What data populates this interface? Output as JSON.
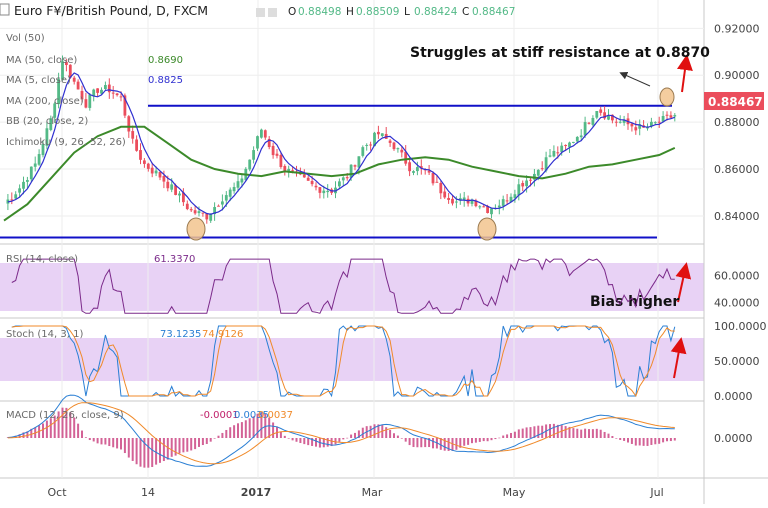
{
  "header": {
    "symbol": "Euro F¥/British Pound, D, FXCM",
    "ohlc": [
      {
        "k": "O",
        "v": "0.88498"
      },
      {
        "k": "H",
        "v": "0.88509"
      },
      {
        "k": "L",
        "v": "0.88424"
      },
      {
        "k": "C",
        "v": "0.88467"
      }
    ]
  },
  "annotations": {
    "resistance": "Struggles at stiff resistance at 0.8870",
    "bias": "Bias higher"
  },
  "price_tag": "0.88467",
  "colors": {
    "bull": "#53b987",
    "bear": "#eb4d5c",
    "ma5": "#3030d0",
    "ma50": "#3c8a2a",
    "level": "#1010c8",
    "rsi": "#7b2a8a",
    "band": "#e8d2f5",
    "stoch_k": "#2a7fd4",
    "stoch_d": "#f08a2a",
    "arrow": "#e01010",
    "circle": "#f2c48e",
    "hist": "#c0206a"
  },
  "main_legend": [
    {
      "name": "Vol (50)",
      "value": "",
      "color": "#6a6a6a"
    },
    {
      "name": "MA (50, close)",
      "value": "0.8690",
      "color": "#3c8a2a"
    },
    {
      "name": "MA (5, close)",
      "value": "0.8825",
      "color": "#3030d0"
    },
    {
      "name": "MA (200, close)",
      "value": "",
      "color": "#6a6a6a"
    },
    {
      "name": "BB (20, close, 2)",
      "value": "",
      "color": "#6a6a6a"
    },
    {
      "name": "Ichimoku (9, 26, 52, 26)",
      "value": "",
      "color": "#6a6a6a"
    }
  ],
  "rsi_legend": {
    "name": "RSI (14, close)",
    "value": "61.3370"
  },
  "stoch_legend": {
    "name": "Stoch (14, 3, 1)",
    "v1": "73.1235",
    "v2": "74.9126"
  },
  "macd_legend": {
    "name": "MACD (12, 26, close, 9)",
    "v1": "-0.0001",
    "v2": "0.0035",
    "v3": "0.0037"
  },
  "chart_data": {
    "type": "candlestick",
    "title": "Euro F¥/British Pound, D, FXCM",
    "x_labels": [
      "Oct",
      "14",
      "2017",
      "Mar",
      "May",
      "Jul"
    ],
    "price_axis": {
      "ticks": [
        "0.92000",
        "0.90000",
        "0.88000",
        "0.86000",
        "0.84000"
      ],
      "range": [
        0.8306,
        0.9244
      ]
    },
    "resistance_level": 0.887,
    "support_level": 0.8308,
    "close_path": [
      [
        0,
        0.845
      ],
      [
        4,
        0.852
      ],
      [
        8,
        0.862
      ],
      [
        12,
        0.881
      ],
      [
        15,
        0.907
      ],
      [
        18,
        0.897
      ],
      [
        21,
        0.888
      ],
      [
        24,
        0.894
      ],
      [
        27,
        0.894
      ],
      [
        30,
        0.89
      ],
      [
        33,
        0.871
      ],
      [
        36,
        0.862
      ],
      [
        40,
        0.857
      ],
      [
        44,
        0.85
      ],
      [
        48,
        0.842
      ],
      [
        52,
        0.84
      ],
      [
        56,
        0.848
      ],
      [
        60,
        0.853
      ],
      [
        63,
        0.864
      ],
      [
        66,
        0.877
      ],
      [
        69,
        0.867
      ],
      [
        72,
        0.86
      ],
      [
        76,
        0.856
      ],
      [
        80,
        0.852
      ],
      [
        84,
        0.851
      ],
      [
        88,
        0.857
      ],
      [
        92,
        0.869
      ],
      [
        96,
        0.875
      ],
      [
        100,
        0.87
      ],
      [
        104,
        0.861
      ],
      [
        108,
        0.859
      ],
      [
        112,
        0.851
      ],
      [
        116,
        0.846
      ],
      [
        120,
        0.847
      ],
      [
        124,
        0.843
      ],
      [
        128,
        0.846
      ],
      [
        132,
        0.853
      ],
      [
        136,
        0.858
      ],
      [
        140,
        0.866
      ],
      [
        144,
        0.869
      ],
      [
        148,
        0.876
      ],
      [
        152,
        0.886
      ],
      [
        156,
        0.881
      ],
      [
        160,
        0.879
      ],
      [
        164,
        0.877
      ],
      [
        168,
        0.88
      ],
      [
        172,
        0.883
      ]
    ],
    "ma50": [
      [
        0,
        0.838
      ],
      [
        6,
        0.845
      ],
      [
        12,
        0.856
      ],
      [
        18,
        0.867
      ],
      [
        24,
        0.874
      ],
      [
        30,
        0.878
      ],
      [
        36,
        0.878
      ],
      [
        42,
        0.871
      ],
      [
        48,
        0.864
      ],
      [
        54,
        0.86
      ],
      [
        60,
        0.858
      ],
      [
        66,
        0.857
      ],
      [
        72,
        0.859
      ],
      [
        78,
        0.858
      ],
      [
        84,
        0.857
      ],
      [
        90,
        0.858
      ],
      [
        96,
        0.862
      ],
      [
        102,
        0.864
      ],
      [
        108,
        0.865
      ],
      [
        114,
        0.864
      ],
      [
        120,
        0.861
      ],
      [
        126,
        0.859
      ],
      [
        132,
        0.857
      ],
      [
        138,
        0.856
      ],
      [
        144,
        0.858
      ],
      [
        150,
        0.861
      ],
      [
        156,
        0.862
      ],
      [
        162,
        0.864
      ],
      [
        168,
        0.866
      ],
      [
        172,
        0.869
      ]
    ],
    "rsi": {
      "ticks": [
        "60.0000",
        "40.0000"
      ],
      "range": [
        30,
        75
      ]
    },
    "stoch": {
      "ticks": [
        "100.0000",
        "50.0000",
        "0.0000"
      ],
      "range": [
        0,
        100
      ]
    },
    "macd": {
      "ticks": [
        "0.0000"
      ],
      "range": [
        -0.012,
        0.01
      ]
    }
  }
}
